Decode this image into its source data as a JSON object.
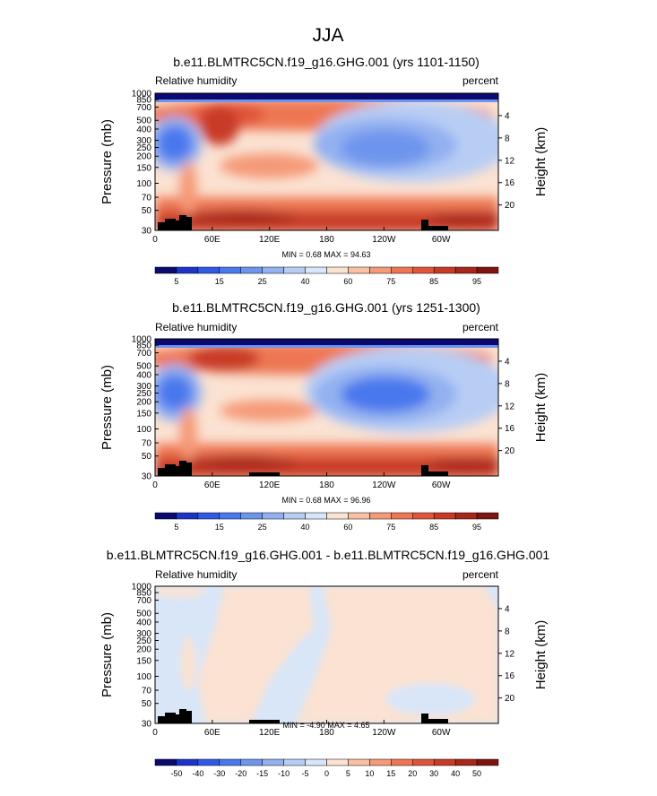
{
  "figure_title": "JJA",
  "chart_data": [
    {
      "type": "heatmap",
      "title": "b.e11.BLMTRC5CN.f19_g16.GHG.001 (yrs 1101-1150)",
      "left_label": "Relative humidity",
      "right_label": "percent",
      "ylabel": "Pressure (mb)",
      "ylabel_right": "Height (km)",
      "x_ticks": [
        "0",
        "60E",
        "120E",
        "180",
        "120W",
        "60W"
      ],
      "y_ticks": [
        "1000",
        "850",
        "700",
        "500",
        "400",
        "300",
        "250",
        "200",
        "150",
        "100",
        "70",
        "50",
        "30"
      ],
      "y2_ticks": [
        "4",
        "8",
        "12",
        "16",
        "20"
      ],
      "stats": "MIN =  0.68  MAX = 94.63",
      "min": 0.68,
      "max": 94.63,
      "colorbar_labels": [
        "5",
        "15",
        "25",
        "40",
        "60",
        "75",
        "85",
        "95"
      ],
      "colorbar_colors": [
        "#0a0a70",
        "#1c34c8",
        "#2f5ae8",
        "#4a78ee",
        "#6e95ee",
        "#93b1f0",
        "#b8cdf4",
        "#d9e6f8",
        "#fbe2d2",
        "#f9c0a4",
        "#f59a78",
        "#ee7752",
        "#e0553a",
        "#c83a26",
        "#a8261a",
        "#7f1410"
      ]
    },
    {
      "type": "heatmap",
      "title": "b.e11.BLMTRC5CN.f19_g16.GHG.001 (yrs 1251-1300)",
      "left_label": "Relative humidity",
      "right_label": "percent",
      "ylabel": "Pressure (mb)",
      "ylabel_right": "Height (km)",
      "x_ticks": [
        "0",
        "60E",
        "120E",
        "180",
        "120W",
        "60W"
      ],
      "y_ticks": [
        "1000",
        "850",
        "700",
        "500",
        "400",
        "300",
        "250",
        "200",
        "150",
        "100",
        "70",
        "50",
        "30"
      ],
      "y2_ticks": [
        "4",
        "8",
        "12",
        "16",
        "20"
      ],
      "stats": "MIN =  0.68  MAX = 96.96",
      "min": 0.68,
      "max": 96.96,
      "colorbar_labels": [
        "5",
        "15",
        "25",
        "40",
        "60",
        "75",
        "85",
        "95"
      ],
      "colorbar_colors": [
        "#0a0a70",
        "#1c34c8",
        "#2f5ae8",
        "#4a78ee",
        "#6e95ee",
        "#93b1f0",
        "#b8cdf4",
        "#d9e6f8",
        "#fbe2d2",
        "#f9c0a4",
        "#f59a78",
        "#ee7752",
        "#e0553a",
        "#c83a26",
        "#a8261a",
        "#7f1410"
      ]
    },
    {
      "type": "heatmap",
      "title": "b.e11.BLMTRC5CN.f19_g16.GHG.001 - b.e11.BLMTRC5CN.f19_g16.GHG.001",
      "left_label": "Relative humidity",
      "right_label": "percent",
      "ylabel": "Pressure (mb)",
      "ylabel_right": "Height (km)",
      "x_ticks": [
        "0",
        "60E",
        "120E",
        "180",
        "120W",
        "60W"
      ],
      "y_ticks": [
        "1000",
        "850",
        "700",
        "500",
        "400",
        "300",
        "250",
        "200",
        "150",
        "100",
        "70",
        "50",
        "30"
      ],
      "y2_ticks": [
        "4",
        "8",
        "12",
        "16",
        "20"
      ],
      "stats": "MIN = -4.90  MAX =  4.65",
      "min": -4.9,
      "max": 4.65,
      "colorbar_labels": [
        "-50",
        "-40",
        "-30",
        "-20",
        "-15",
        "-10",
        "-5",
        "0",
        "5",
        "10",
        "15",
        "20",
        "30",
        "40",
        "50"
      ],
      "colorbar_colors": [
        "#0a0a70",
        "#1c34c8",
        "#2f5ae8",
        "#4a78ee",
        "#6e95ee",
        "#93b1f0",
        "#b8cdf4",
        "#d9e6f8",
        "#fbe2d2",
        "#f9c0a4",
        "#f59a78",
        "#ee7752",
        "#e0553a",
        "#c83a26",
        "#a8261a",
        "#7f1410"
      ]
    }
  ]
}
